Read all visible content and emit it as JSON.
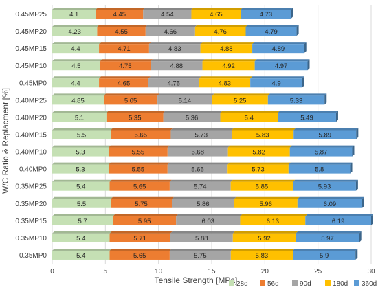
{
  "chart_data": {
    "type": "bar",
    "orientation": "horizontal",
    "stacked": true,
    "xlabel": "Tensile Strength [MPa]",
    "ylabel": "W/C Ratio & Replacment [%]",
    "xlim": [
      0,
      30
    ],
    "xticks": [
      "0",
      "5",
      "10",
      "15",
      "20",
      "25",
      "30"
    ],
    "grid": true,
    "legend_position": "bottom-right",
    "categories": [
      "0.45MP25",
      "0.45MP20",
      "0.45MP15",
      "0.45MP10",
      "0.45MP0",
      "0.40MP25",
      "0.40MP20",
      "0.40MP15",
      "0.40MP10",
      "0.40MP0",
      "0.35MP25",
      "0.35MP20",
      "0.35MP15",
      "0.35MP10",
      "0.35MP0"
    ],
    "series": [
      {
        "name": "28d",
        "color": "#c5e0b4",
        "values": [
          4.1,
          4.23,
          4.4,
          4.5,
          4.4,
          4.85,
          5.1,
          5.5,
          5.3,
          5.3,
          5.4,
          5.5,
          5.7,
          5.4,
          5.4
        ]
      },
      {
        "name": "56d",
        "color": "#ed7d31",
        "values": [
          4.45,
          4.55,
          4.71,
          4.75,
          4.65,
          5.05,
          5.35,
          5.65,
          5.55,
          5.55,
          5.65,
          5.75,
          5.95,
          5.71,
          5.65
        ]
      },
      {
        "name": "90d",
        "color": "#a5a5a5",
        "values": [
          4.54,
          4.66,
          4.83,
          4.88,
          4.75,
          5.14,
          5.36,
          5.73,
          5.68,
          5.65,
          5.74,
          5.86,
          6.03,
          5.88,
          5.75
        ]
      },
      {
        "name": "180d",
        "color": "#ffc000",
        "values": [
          4.65,
          4.76,
          4.88,
          4.92,
          4.83,
          5.25,
          5.4,
          5.83,
          5.82,
          5.73,
          5.85,
          5.96,
          6.13,
          5.92,
          5.83
        ]
      },
      {
        "name": "360d",
        "color": "#5b9bd5",
        "values": [
          4.73,
          4.79,
          4.89,
          4.97,
          4.9,
          5.33,
          5.49,
          5.89,
          5.87,
          5.8,
          5.93,
          6.09,
          6.19,
          5.97,
          5.9
        ]
      }
    ]
  }
}
